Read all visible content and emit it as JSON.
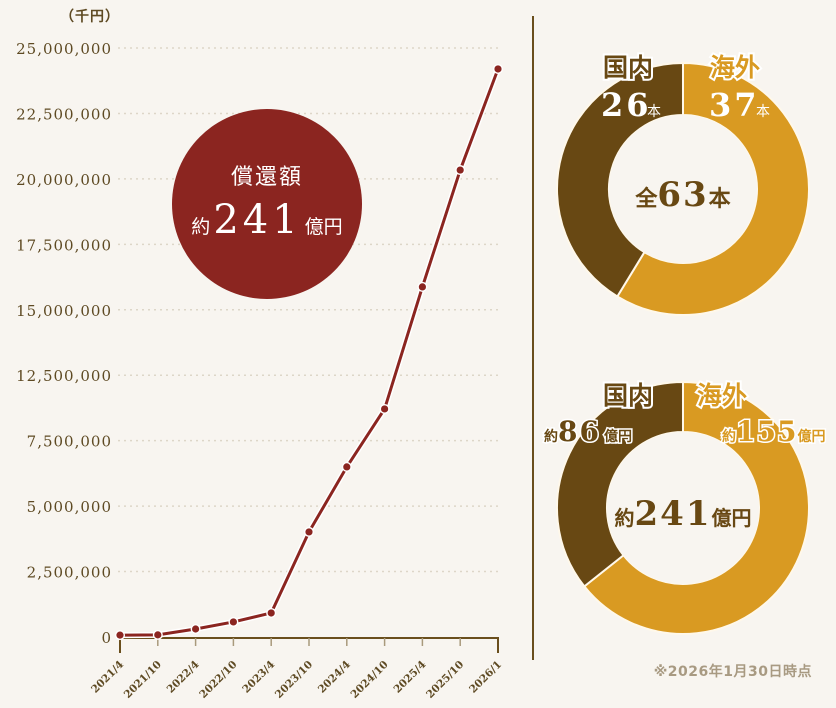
{
  "colors": {
    "background": "#f8f5f0",
    "line": "#8b2520",
    "axis": "#6a4f1d",
    "axis_text": "#5e4a23",
    "grid": "#ddd6c8",
    "domestic": "#684813",
    "overseas": "#d99a22",
    "footnote": "#a89a82"
  },
  "line_chart": {
    "unit_label": "（千円）",
    "y_tick_labels": [
      "0",
      "2,500,000",
      "5,000,000",
      "7,500,000",
      "12,500,000",
      "15,000,000",
      "17,500,000",
      "20,000,000",
      "22,500,000",
      "25,000,000"
    ],
    "badge": {
      "title": "償還額",
      "prefix": "約",
      "value": "241",
      "suffix": "億円"
    }
  },
  "donut_count": {
    "domestic": {
      "label": "国内",
      "value": "26",
      "unit": "本"
    },
    "overseas": {
      "label": "海外",
      "value": "37",
      "unit": "本"
    },
    "center": {
      "prefix": "全",
      "value": "63",
      "suffix": "本"
    }
  },
  "donut_amount": {
    "domestic": {
      "label": "国内",
      "prefix": "約",
      "value": "86",
      "unit": "億円"
    },
    "overseas": {
      "label": "海外",
      "prefix": "約",
      "value": "155",
      "unit": "億円"
    },
    "center": {
      "prefix": "約",
      "value": "241",
      "suffix": "億円"
    }
  },
  "footnote": "※2026年1月30日時点",
  "chart_data": [
    {
      "type": "line",
      "title": "償還額 約241億円",
      "xlabel": "",
      "ylabel": "（千円）",
      "categories": [
        "2021/4",
        "2021/10",
        "2022/4",
        "2022/10",
        "2023/4",
        "2023/10",
        "2024/4",
        "2024/10",
        "2025/4",
        "2025/10",
        "2026/1"
      ],
      "values": [
        80000,
        90000,
        340000,
        640000,
        1020000,
        4460000,
        7220000,
        9680000,
        14860000,
        19820000,
        24110000
      ],
      "y_tick_labels": [
        "0",
        "2,500,000",
        "5,000,000",
        "7,500,000",
        "12,500,000",
        "15,000,000",
        "17,500,000",
        "20,000,000",
        "22,500,000",
        "25,000,000"
      ],
      "ylim": [
        0,
        25000000
      ],
      "grid": true,
      "legend": "none"
    },
    {
      "type": "pie",
      "title": "全63本",
      "categories": [
        "国内",
        "海外"
      ],
      "values": [
        26,
        37
      ],
      "unit": "本"
    },
    {
      "type": "pie",
      "title": "約241億円",
      "categories": [
        "国内",
        "海外"
      ],
      "values": [
        86,
        155
      ],
      "unit": "億円"
    }
  ]
}
